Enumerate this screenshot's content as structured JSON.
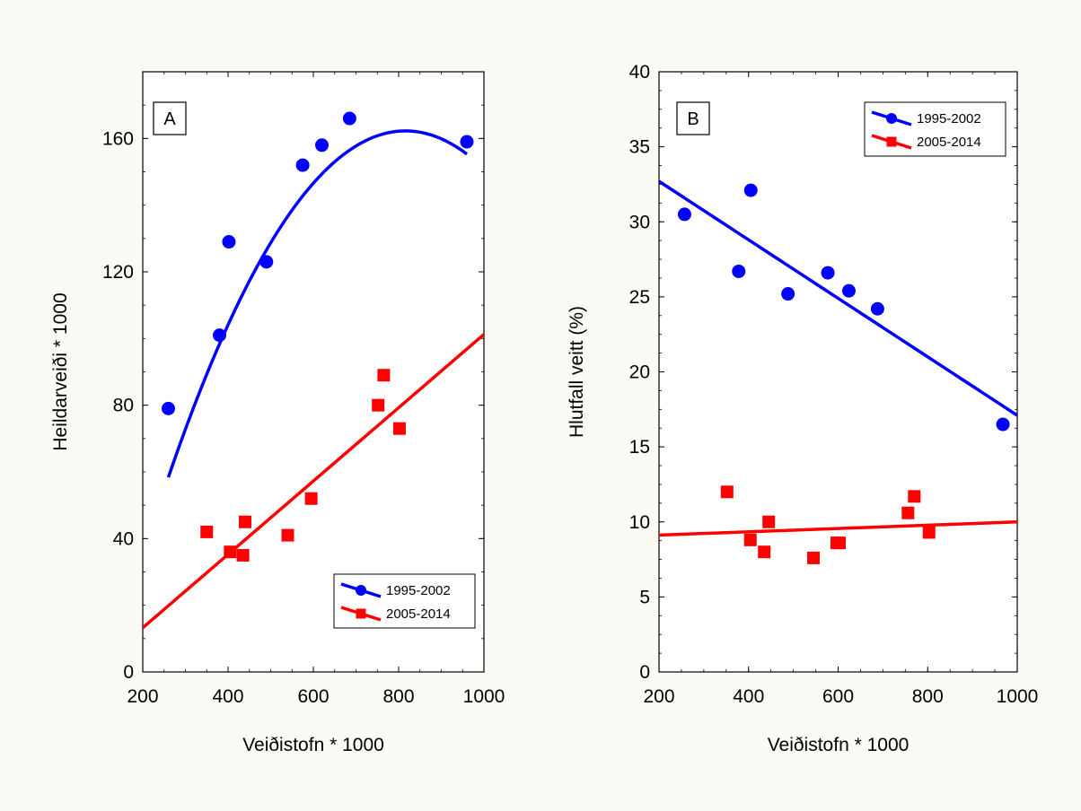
{
  "figure": {
    "background": "#fbfaf4"
  },
  "chart_data": [
    {
      "type": "scatter",
      "panel_label": "A",
      "xlabel": "Veiðistofn * 1000",
      "ylabel": "Heildarveiði * 1000",
      "xlim": [
        200,
        1000
      ],
      "ylim": [
        0,
        180
      ],
      "x_ticks": [
        200,
        400,
        600,
        800,
        1000
      ],
      "y_ticks": [
        0,
        40,
        80,
        120,
        160
      ],
      "grid": false,
      "legend_position": "bottom-right",
      "series": [
        {
          "name": "1995-2002",
          "color": "#0000ff",
          "marker": "circle",
          "points": [
            [
              260,
              79
            ],
            [
              380,
              101
            ],
            [
              402,
              129
            ],
            [
              490,
              123
            ],
            [
              575,
              152
            ],
            [
              620,
              158
            ],
            [
              685,
              166
            ],
            [
              960,
              159
            ]
          ],
          "fit": {
            "type": "quadratic",
            "coef": [
              -61.5,
              0.5484,
              -0.000336
            ],
            "x_range": [
              260,
              960
            ]
          }
        },
        {
          "name": "2005-2014",
          "color": "#ff0000",
          "marker": "square",
          "points": [
            [
              350,
              42
            ],
            [
              405,
              36
            ],
            [
              435,
              35
            ],
            [
              440,
              45
            ],
            [
              540,
              41
            ],
            [
              595,
              52
            ],
            [
              752,
              80
            ],
            [
              765,
              89
            ],
            [
              802,
              73
            ]
          ],
          "fit": {
            "type": "linear",
            "coef": [
              -8.75,
              0.11
            ],
            "x_range": [
              200,
              1000
            ]
          }
        }
      ]
    },
    {
      "type": "scatter",
      "panel_label": "B",
      "xlabel": "Veiðistofn * 1000",
      "ylabel": "Hlutfall veitt (%)",
      "xlim": [
        200,
        1000
      ],
      "ylim": [
        0,
        40
      ],
      "x_ticks": [
        200,
        400,
        600,
        800,
        1000
      ],
      "y_ticks": [
        0,
        5,
        10,
        15,
        20,
        25,
        30,
        35,
        40
      ],
      "grid": false,
      "legend_position": "top-right",
      "series": [
        {
          "name": "1995-2002",
          "color": "#0000ff",
          "marker": "circle",
          "points": [
            [
              257,
              30.5
            ],
            [
              378,
              26.7
            ],
            [
              405,
              32.1
            ],
            [
              488,
              25.2
            ],
            [
              577,
              26.6
            ],
            [
              624,
              25.4
            ],
            [
              688,
              24.2
            ],
            [
              968,
              16.5
            ]
          ],
          "fit": {
            "type": "linear",
            "coef": [
              36.6,
              -0.0195
            ],
            "x_range": [
              200,
              1000
            ]
          }
        },
        {
          "name": "2005-2014",
          "color": "#ff0000",
          "marker": "square",
          "points": [
            [
              352,
              12.0
            ],
            [
              404,
              8.8
            ],
            [
              435,
              8.0
            ],
            [
              445,
              10.0
            ],
            [
              545,
              7.6
            ],
            [
              597,
              8.6
            ],
            [
              603,
              8.6
            ],
            [
              756,
              10.6
            ],
            [
              770,
              11.7
            ],
            [
              803,
              9.3
            ]
          ],
          "fit": {
            "type": "linear",
            "coef": [
              8.9,
              0.0011
            ],
            "x_range": [
              200,
              1000
            ]
          }
        }
      ]
    }
  ]
}
